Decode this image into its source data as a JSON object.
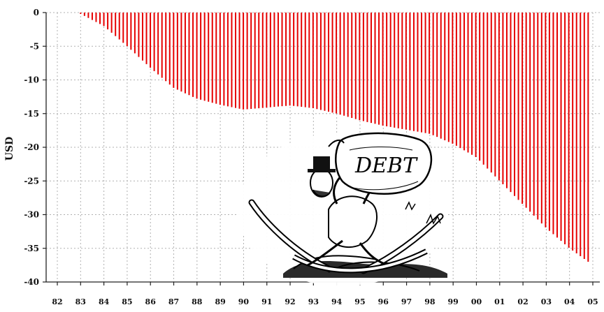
{
  "chart_data": {
    "type": "bar",
    "title": "",
    "xlabel": "",
    "ylabel": "USD",
    "ylim": [
      -40,
      0
    ],
    "yticks": [
      0,
      -5,
      -10,
      -15,
      -20,
      -25,
      -30,
      -35,
      -40
    ],
    "xtick_labels": [
      "82",
      "83",
      "84",
      "85",
      "86",
      "87",
      "88",
      "89",
      "90",
      "91",
      "92",
      "93",
      "94",
      "95",
      "96",
      "97",
      "98",
      "99",
      "00",
      "01",
      "02",
      "03",
      "04",
      "05"
    ],
    "grid": true,
    "bar_color": "#e60000",
    "grid_color": "#b0b0b0",
    "series_note_points": [
      {
        "x": 1983.0,
        "y": -0.2
      },
      {
        "x": 1984.0,
        "y": -2.0
      },
      {
        "x": 1985.0,
        "y": -5.0
      },
      {
        "x": 1986.0,
        "y": -8.2
      },
      {
        "x": 1987.0,
        "y": -11.2
      },
      {
        "x": 1988.0,
        "y": -12.8
      },
      {
        "x": 1989.0,
        "y": -13.7
      },
      {
        "x": 1990.0,
        "y": -14.4
      },
      {
        "x": 1991.0,
        "y": -14.1
      },
      {
        "x": 1992.0,
        "y": -13.8
      },
      {
        "x": 1993.0,
        "y": -14.2
      },
      {
        "x": 1994.0,
        "y": -15.0
      },
      {
        "x": 1995.0,
        "y": -16.0
      },
      {
        "x": 1996.0,
        "y": -16.8
      },
      {
        "x": 1997.0,
        "y": -17.4
      },
      {
        "x": 1998.0,
        "y": -18.0
      },
      {
        "x": 1999.0,
        "y": -19.5
      },
      {
        "x": 2000.0,
        "y": -21.5
      },
      {
        "x": 2001.0,
        "y": -25.0
      },
      {
        "x": 2002.0,
        "y": -28.5
      },
      {
        "x": 2003.0,
        "y": -32.0
      },
      {
        "x": 2004.0,
        "y": -35.0
      },
      {
        "x": 2004.8,
        "y": -37.0
      }
    ],
    "bars_per_year": 12,
    "start_year": 1983.0,
    "end_year": 2004.8
  },
  "cartoon": {
    "sack_text": "DEBT",
    "description_icon": "debt-burden-cartoon-icon"
  }
}
